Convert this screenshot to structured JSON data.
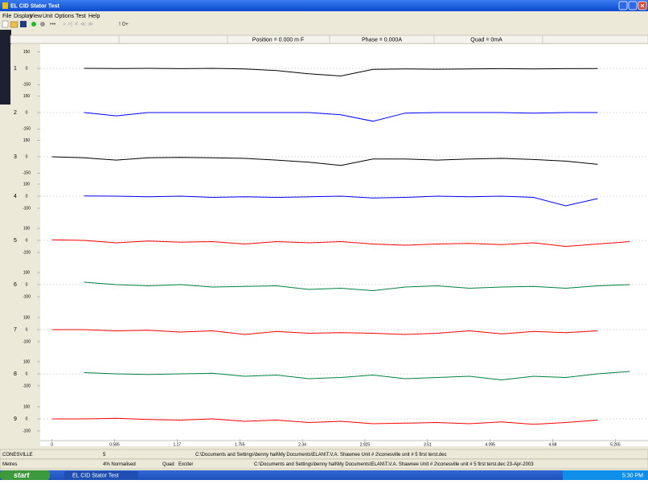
{
  "window": {
    "title": "EL CID Stator Test",
    "menu": [
      "File",
      "Display",
      "View",
      "Unit",
      "Options",
      "Test",
      "Help"
    ]
  },
  "header": {
    "position": "Position = 0.000 m  F",
    "phase": "Phase = 0.000A",
    "quad": "Quad = 0mA"
  },
  "chart_data": {
    "type": "line",
    "x": [
      0,
      0.3,
      0.6,
      0.9,
      1.2,
      1.5,
      1.8,
      2.1,
      2.4,
      2.7,
      3.0,
      3.3,
      3.6,
      3.9,
      4.2,
      4.5,
      4.8,
      5.1,
      5.4
    ],
    "xlim": [
      -0.11,
      5.57
    ],
    "xticks": [
      0,
      0.585,
      1.17,
      1.755,
      2.34,
      2.925,
      3.51,
      4.095,
      4.68,
      5.265
    ],
    "series": [
      {
        "name": "1",
        "color": "#000000",
        "ylim": [
          -200,
          200
        ],
        "yticks": [
          150,
          0,
          -150
        ],
        "values": [
          null,
          0,
          -2,
          0,
          -3,
          0,
          -5,
          -20,
          -50,
          -70,
          -10,
          -5,
          -8,
          -5,
          -3,
          -5,
          -3,
          -2,
          null
        ]
      },
      {
        "name": "2",
        "color": "#0000ff",
        "ylim": [
          -200,
          200
        ],
        "yticks": [
          150,
          0,
          -150
        ],
        "values": [
          null,
          0,
          -30,
          0,
          0,
          0,
          0,
          0,
          0,
          -20,
          -80,
          -5,
          0,
          0,
          0,
          -5,
          0,
          0,
          null
        ]
      },
      {
        "name": "3",
        "color": "#000000",
        "ylim": [
          -200,
          200
        ],
        "yticks": [
          150,
          0,
          -150
        ],
        "values": [
          0,
          -10,
          -30,
          -10,
          -5,
          -10,
          -15,
          -30,
          -50,
          -80,
          -20,
          -20,
          -30,
          -20,
          -15,
          -25,
          -40,
          -70,
          null
        ]
      },
      {
        "name": "4",
        "color": "#0000ff",
        "ylim": [
          -180,
          180
        ],
        "yticks": [
          100,
          0,
          -100
        ],
        "values": [
          null,
          2,
          0,
          -5,
          0,
          -10,
          -5,
          -10,
          -5,
          0,
          -15,
          -10,
          0,
          -5,
          0,
          -10,
          -80,
          -20,
          null
        ]
      },
      {
        "name": "5",
        "color": "#ff0000",
        "ylim": [
          -180,
          180
        ],
        "yticks": [
          100,
          0,
          -100
        ],
        "values": [
          5,
          0,
          -20,
          -5,
          -15,
          -10,
          -30,
          -10,
          -20,
          -10,
          -30,
          -40,
          -30,
          -25,
          -35,
          -20,
          -50,
          -30,
          -10
        ]
      },
      {
        "name": "6",
        "color": "#008040",
        "ylim": [
          -180,
          180
        ],
        "yticks": [
          100,
          0,
          -100
        ],
        "values": [
          null,
          20,
          0,
          -10,
          0,
          -20,
          -15,
          -10,
          -40,
          -30,
          -50,
          -20,
          -10,
          -30,
          -20,
          -15,
          -30,
          -10,
          0
        ]
      },
      {
        "name": "7",
        "color": "#ff0000",
        "ylim": [
          -180,
          180
        ],
        "yticks": [
          100,
          0,
          -100
        ],
        "values": [
          0,
          0,
          -10,
          -5,
          -20,
          -10,
          -40,
          -15,
          -30,
          -25,
          -30,
          -40,
          -30,
          -10,
          -35,
          -15,
          -25,
          -10,
          null
        ]
      },
      {
        "name": "8",
        "color": "#008040",
        "ylim": [
          -180,
          180
        ],
        "yticks": [
          100,
          0,
          -100
        ],
        "values": [
          null,
          10,
          0,
          -5,
          0,
          5,
          -20,
          -10,
          -40,
          -30,
          -10,
          -40,
          -30,
          -20,
          -50,
          -20,
          -30,
          0,
          20
        ]
      },
      {
        "name": "9",
        "color": "#ff0000",
        "ylim": [
          -180,
          180
        ],
        "yticks": [
          100,
          0,
          -100
        ],
        "values": [
          0,
          0,
          5,
          -5,
          -10,
          0,
          -20,
          -10,
          -30,
          -20,
          -40,
          -35,
          -30,
          -40,
          -25,
          -45,
          -30,
          -10,
          null
        ]
      }
    ]
  },
  "status": {
    "row1": [
      "CONESVILLE",
      "5",
      "C:\\Documents and Settings\\benny hall\\My Documents\\ELAN\\T.V.A. Shawnee Unit # 2\\conesville unit # 5 first terst.dec"
    ],
    "row2": [
      "Metres",
      "4% Normalised",
      "Quad",
      "Exciter",
      "C:\\Documents and Settings\\benny hall\\My Documents\\ELAN\\T.V.A. Shawnee Unit # 2\\conesville unit # 5 first terst.dec 23-Apr-2003"
    ]
  },
  "taskbar": {
    "start": "start",
    "task": "EL CID Stator Test",
    "clock": "5:30 PM"
  }
}
